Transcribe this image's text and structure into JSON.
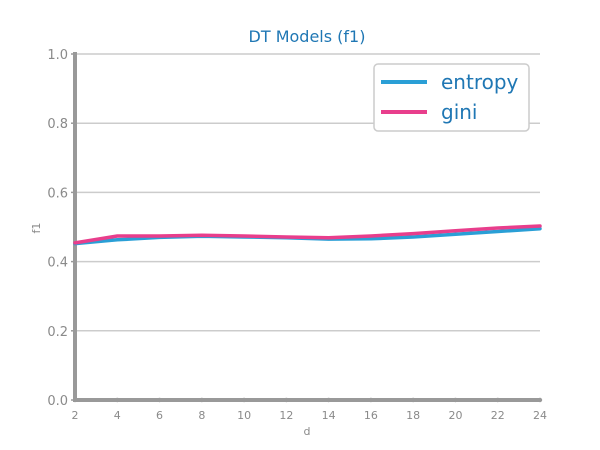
{
  "chart_data": {
    "type": "line",
    "title": "DT Models (f1)",
    "xlabel": "d",
    "ylabel": "f1",
    "x": [
      2,
      4,
      6,
      8,
      10,
      12,
      14,
      16,
      18,
      20,
      22,
      24
    ],
    "xticks": [
      "2",
      "4",
      "6",
      "8",
      "10",
      "12",
      "14",
      "16",
      "18",
      "20",
      "22",
      "24"
    ],
    "xlim": [
      2,
      24
    ],
    "ylim": [
      0,
      1
    ],
    "yticks": [
      "0.0",
      "0.2",
      "0.4",
      "0.6",
      "0.8",
      "1.0"
    ],
    "grid": "horizontal",
    "legend_position": "top-right",
    "series": [
      {
        "name": "entropy",
        "color": "#2a9fd6",
        "values": [
          0.452,
          0.463,
          0.47,
          0.473,
          0.471,
          0.469,
          0.465,
          0.466,
          0.471,
          0.479,
          0.487,
          0.495
        ]
      },
      {
        "name": "gini",
        "color": "#e83e8c",
        "values": [
          0.454,
          0.474,
          0.474,
          0.476,
          0.474,
          0.471,
          0.469,
          0.474,
          0.481,
          0.489,
          0.497,
          0.503
        ]
      }
    ]
  }
}
